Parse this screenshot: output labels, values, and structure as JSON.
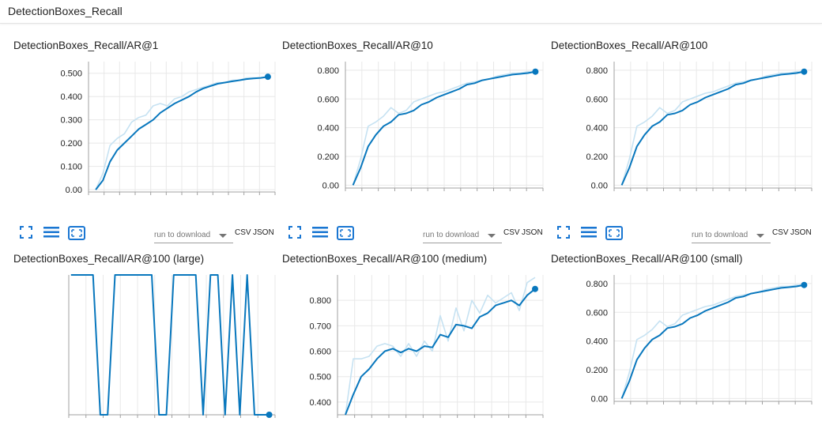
{
  "section": {
    "title": "DetectionBoxes_Recall"
  },
  "toolbar": {
    "download_placeholder": "run to download",
    "csv_label": "CSV",
    "json_label": "JSON"
  },
  "colors": {
    "smoothed": "#0877bd",
    "raw": "#c6e2f2",
    "grid": "#e8e8e8",
    "axis": "#a0a0a0",
    "icon": "#1976d2"
  },
  "chart_data": [
    {
      "type": "line",
      "title": "DetectionBoxes_Recall/AR@1",
      "ylim": [
        -0.01,
        0.55
      ],
      "yticks": [
        0.0,
        0.1,
        0.2,
        0.3,
        0.4,
        0.5
      ],
      "ytick_labels": [
        "0.00",
        "0.100",
        "0.200",
        "0.300",
        "0.400",
        "0.500"
      ],
      "xlim": [
        0,
        26
      ],
      "grid": true,
      "series": [
        {
          "role": "raw",
          "x": [
            1,
            2,
            3,
            4,
            5,
            6,
            7,
            8,
            9,
            10,
            11,
            12,
            13,
            14,
            15,
            16,
            17,
            18,
            19,
            20,
            21,
            22,
            23,
            24,
            25
          ],
          "y": [
            0.0,
            0.07,
            0.19,
            0.22,
            0.24,
            0.29,
            0.31,
            0.32,
            0.36,
            0.37,
            0.36,
            0.39,
            0.4,
            0.42,
            0.43,
            0.44,
            0.45,
            0.46,
            0.46,
            0.47,
            0.47,
            0.48,
            0.48,
            0.48,
            0.485
          ]
        },
        {
          "role": "smoothed",
          "x": [
            1,
            2,
            3,
            4,
            5,
            6,
            7,
            8,
            9,
            10,
            11,
            12,
            13,
            14,
            15,
            16,
            17,
            18,
            19,
            20,
            21,
            22,
            23,
            24,
            25
          ],
          "y": [
            0.0,
            0.04,
            0.12,
            0.17,
            0.2,
            0.23,
            0.26,
            0.28,
            0.3,
            0.33,
            0.35,
            0.37,
            0.385,
            0.4,
            0.42,
            0.435,
            0.445,
            0.455,
            0.46,
            0.465,
            0.47,
            0.475,
            0.478,
            0.48,
            0.485
          ]
        }
      ]
    },
    {
      "type": "line",
      "title": "DetectionBoxes_Recall/AR@10",
      "ylim": [
        -0.02,
        0.86
      ],
      "yticks": [
        0.0,
        0.2,
        0.4,
        0.6,
        0.8
      ],
      "ytick_labels": [
        "0.00",
        "0.200",
        "0.400",
        "0.600",
        "0.800"
      ],
      "xlim": [
        0,
        26
      ],
      "grid": true,
      "series": [
        {
          "role": "raw",
          "x": [
            1,
            2,
            3,
            4,
            5,
            6,
            7,
            8,
            9,
            10,
            11,
            12,
            13,
            14,
            15,
            16,
            17,
            18,
            19,
            20,
            21,
            22,
            23,
            24,
            25
          ],
          "y": [
            0.0,
            0.18,
            0.41,
            0.44,
            0.48,
            0.54,
            0.5,
            0.52,
            0.58,
            0.6,
            0.62,
            0.64,
            0.65,
            0.67,
            0.69,
            0.71,
            0.72,
            0.73,
            0.74,
            0.76,
            0.77,
            0.78,
            0.78,
            0.79,
            0.79
          ]
        },
        {
          "role": "smoothed",
          "x": [
            1,
            2,
            3,
            4,
            5,
            6,
            7,
            8,
            9,
            10,
            11,
            12,
            13,
            14,
            15,
            16,
            17,
            18,
            19,
            20,
            21,
            22,
            23,
            24,
            25
          ],
          "y": [
            0.0,
            0.12,
            0.27,
            0.35,
            0.41,
            0.44,
            0.49,
            0.5,
            0.52,
            0.56,
            0.58,
            0.61,
            0.63,
            0.65,
            0.67,
            0.7,
            0.71,
            0.73,
            0.74,
            0.75,
            0.76,
            0.77,
            0.775,
            0.78,
            0.79
          ]
        }
      ]
    },
    {
      "type": "line",
      "title": "DetectionBoxes_Recall/AR@100",
      "ylim": [
        -0.02,
        0.86
      ],
      "yticks": [
        0.0,
        0.2,
        0.4,
        0.6,
        0.8
      ],
      "ytick_labels": [
        "0.00",
        "0.200",
        "0.400",
        "0.600",
        "0.800"
      ],
      "xlim": [
        0,
        26
      ],
      "grid": true,
      "series": [
        {
          "role": "raw",
          "x": [
            1,
            2,
            3,
            4,
            5,
            6,
            7,
            8,
            9,
            10,
            11,
            12,
            13,
            14,
            15,
            16,
            17,
            18,
            19,
            20,
            21,
            22,
            23,
            24,
            25
          ],
          "y": [
            0.0,
            0.18,
            0.41,
            0.44,
            0.48,
            0.54,
            0.5,
            0.52,
            0.58,
            0.6,
            0.62,
            0.64,
            0.65,
            0.67,
            0.69,
            0.71,
            0.72,
            0.73,
            0.74,
            0.76,
            0.77,
            0.78,
            0.78,
            0.79,
            0.79
          ]
        },
        {
          "role": "smoothed",
          "x": [
            1,
            2,
            3,
            4,
            5,
            6,
            7,
            8,
            9,
            10,
            11,
            12,
            13,
            14,
            15,
            16,
            17,
            18,
            19,
            20,
            21,
            22,
            23,
            24,
            25
          ],
          "y": [
            0.0,
            0.12,
            0.27,
            0.35,
            0.41,
            0.44,
            0.49,
            0.5,
            0.52,
            0.56,
            0.58,
            0.61,
            0.63,
            0.65,
            0.67,
            0.7,
            0.71,
            0.73,
            0.74,
            0.75,
            0.76,
            0.77,
            0.775,
            0.78,
            0.79
          ]
        }
      ]
    },
    {
      "type": "line",
      "title": "DetectionBoxes_Recall/AR@100 (large)",
      "ylim": [
        0,
        1
      ],
      "yticks": [],
      "ytick_labels": [],
      "xlim": [
        -0.3,
        27.8
      ],
      "grid": true,
      "series": [
        {
          "role": "smoothed",
          "x": [
            0,
            1,
            2,
            3,
            4,
            5,
            6,
            7,
            8,
            9,
            10,
            11,
            12,
            13,
            14,
            15,
            16,
            17,
            18,
            19,
            20,
            21,
            22,
            23,
            24,
            25,
            26,
            27
          ],
          "y": [
            1,
            1,
            1,
            1,
            0,
            0,
            1,
            1,
            1,
            1,
            1,
            1,
            0,
            0,
            1,
            1,
            1,
            1,
            0,
            1,
            1,
            0,
            1,
            0,
            1,
            0,
            0,
            0
          ]
        }
      ]
    },
    {
      "type": "line",
      "title": "DetectionBoxes_Recall/AR@100 (medium)",
      "ylim": [
        0.35,
        0.9
      ],
      "yticks": [
        0.4,
        0.5,
        0.6,
        0.7,
        0.8
      ],
      "ytick_labels": [
        "0.400",
        "0.500",
        "0.600",
        "0.700",
        "0.800"
      ],
      "xlim": [
        0,
        26
      ],
      "grid": true,
      "series": [
        {
          "role": "raw",
          "x": [
            1,
            2,
            3,
            4,
            5,
            6,
            7,
            8,
            9,
            10,
            11,
            12,
            13,
            14,
            15,
            16,
            17,
            18,
            19,
            20,
            21,
            22,
            23,
            24,
            25
          ],
          "y": [
            0.35,
            0.57,
            0.57,
            0.58,
            0.62,
            0.63,
            0.62,
            0.58,
            0.63,
            0.58,
            0.64,
            0.6,
            0.74,
            0.64,
            0.77,
            0.68,
            0.8,
            0.75,
            0.82,
            0.79,
            0.81,
            0.83,
            0.76,
            0.87,
            0.89
          ]
        },
        {
          "role": "smoothed",
          "x": [
            1,
            2,
            3,
            4,
            5,
            6,
            7,
            8,
            9,
            10,
            11,
            12,
            13,
            14,
            15,
            16,
            17,
            18,
            19,
            20,
            21,
            22,
            23,
            24,
            25
          ],
          "y": [
            0.35,
            0.43,
            0.5,
            0.53,
            0.57,
            0.6,
            0.61,
            0.595,
            0.61,
            0.6,
            0.62,
            0.615,
            0.665,
            0.655,
            0.705,
            0.7,
            0.69,
            0.735,
            0.75,
            0.78,
            0.79,
            0.8,
            0.78,
            0.82,
            0.845
          ]
        }
      ]
    },
    {
      "type": "line",
      "title": "DetectionBoxes_Recall/AR@100 (small)",
      "ylim": [
        -0.02,
        0.86
      ],
      "yticks": [
        0.0,
        0.2,
        0.4,
        0.6,
        0.8
      ],
      "ytick_labels": [
        "0.00",
        "0.200",
        "0.400",
        "0.600",
        "0.800"
      ],
      "xlim": [
        0,
        26
      ],
      "grid": true,
      "series": [
        {
          "role": "raw",
          "x": [
            1,
            2,
            3,
            4,
            5,
            6,
            7,
            8,
            9,
            10,
            11,
            12,
            13,
            14,
            15,
            16,
            17,
            18,
            19,
            20,
            21,
            22,
            23,
            24,
            25
          ],
          "y": [
            0.0,
            0.18,
            0.41,
            0.44,
            0.48,
            0.54,
            0.5,
            0.52,
            0.58,
            0.6,
            0.62,
            0.64,
            0.65,
            0.67,
            0.69,
            0.71,
            0.72,
            0.73,
            0.74,
            0.76,
            0.77,
            0.78,
            0.78,
            0.79,
            0.79
          ]
        },
        {
          "role": "smoothed",
          "x": [
            1,
            2,
            3,
            4,
            5,
            6,
            7,
            8,
            9,
            10,
            11,
            12,
            13,
            14,
            15,
            16,
            17,
            18,
            19,
            20,
            21,
            22,
            23,
            24,
            25
          ],
          "y": [
            0.0,
            0.12,
            0.27,
            0.35,
            0.41,
            0.44,
            0.49,
            0.5,
            0.52,
            0.56,
            0.58,
            0.61,
            0.63,
            0.65,
            0.67,
            0.7,
            0.71,
            0.73,
            0.74,
            0.75,
            0.76,
            0.77,
            0.775,
            0.78,
            0.79
          ]
        }
      ]
    }
  ]
}
